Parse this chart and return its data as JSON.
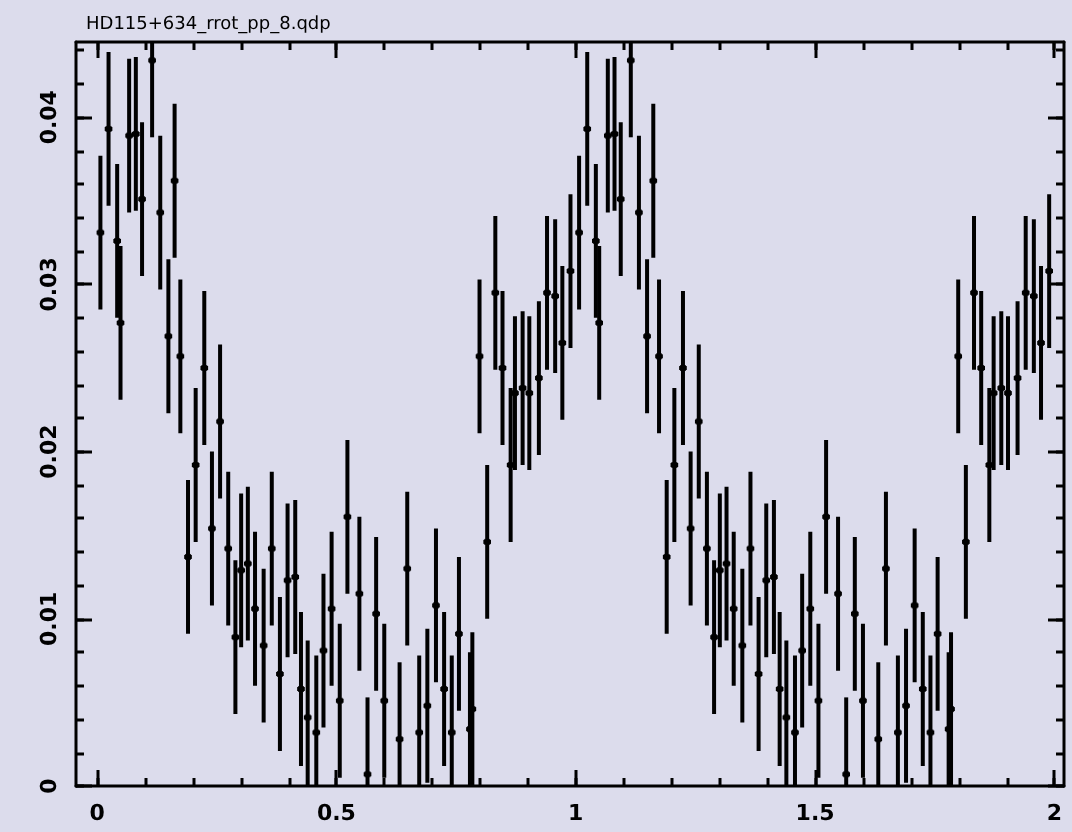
{
  "chart_data": {
    "type": "scatter",
    "title": "HD115+634_rrot_pp_8.qdp",
    "x": [
      0.007,
      0.024,
      0.042,
      0.049,
      0.067,
      0.081,
      0.094,
      0.115,
      0.132,
      0.149,
      0.162,
      0.174,
      0.19,
      0.206,
      0.224,
      0.24,
      0.257,
      0.274,
      0.289,
      0.301,
      0.315,
      0.33,
      0.348,
      0.365,
      0.382,
      0.398,
      0.414,
      0.426,
      0.44,
      0.458,
      0.473,
      0.49,
      0.507,
      0.523,
      0.548,
      0.565,
      0.583,
      0.6,
      0.632,
      0.648,
      0.673,
      0.69,
      0.708,
      0.725,
      0.741,
      0.756,
      0.779,
      0.784,
      0.799,
      0.815,
      0.832,
      0.847,
      0.864,
      0.873,
      0.889,
      0.903,
      0.923,
      0.94,
      0.957,
      0.972,
      0.989,
      1.007,
      1.024,
      1.042,
      1.049,
      1.067,
      1.081,
      1.094,
      1.115,
      1.132,
      1.149,
      1.162,
      1.174,
      1.19,
      1.206,
      1.224,
      1.24,
      1.257,
      1.274,
      1.289,
      1.301,
      1.315,
      1.33,
      1.348,
      1.365,
      1.382,
      1.398,
      1.414,
      1.426,
      1.44,
      1.458,
      1.473,
      1.49,
      1.507,
      1.523,
      1.548,
      1.565,
      1.583,
      1.6,
      1.632,
      1.648,
      1.673,
      1.69,
      1.708,
      1.725,
      1.741,
      1.756,
      1.779,
      1.784,
      1.799,
      1.815,
      1.832,
      1.847,
      1.864,
      1.873,
      1.889,
      1.903,
      1.923,
      1.94,
      1.957,
      1.972,
      1.989
    ],
    "values": [
      0.0331,
      0.0393,
      0.0326,
      0.0277,
      0.0389,
      0.039,
      0.0351,
      0.0434,
      0.0343,
      0.0269,
      0.0362,
      0.0257,
      0.0137,
      0.0192,
      0.025,
      0.0154,
      0.0218,
      0.0142,
      0.0089,
      0.0129,
      0.0133,
      0.0106,
      0.0084,
      0.0142,
      0.0067,
      0.0123,
      0.0125,
      0.0058,
      0.0041,
      0.0032,
      0.0081,
      0.0106,
      0.0051,
      0.0161,
      0.0115,
      0.0007,
      0.0103,
      0.0051,
      0.0028,
      0.013,
      0.0032,
      0.0048,
      0.0108,
      0.0058,
      0.0032,
      0.0091,
      0.0034,
      0.0046,
      0.0257,
      0.0146,
      0.0295,
      0.025,
      0.0192,
      0.0235,
      0.0238,
      0.0235,
      0.0244,
      0.0295,
      0.0293,
      0.0265,
      0.0308,
      0.0331,
      0.0393,
      0.0326,
      0.0277,
      0.0389,
      0.039,
      0.0351,
      0.0434,
      0.0343,
      0.0269,
      0.0362,
      0.0257,
      0.0137,
      0.0192,
      0.025,
      0.0154,
      0.0218,
      0.0142,
      0.0089,
      0.0129,
      0.0133,
      0.0106,
      0.0084,
      0.0142,
      0.0067,
      0.0123,
      0.0125,
      0.0058,
      0.0041,
      0.0032,
      0.0081,
      0.0106,
      0.0051,
      0.0161,
      0.0115,
      0.0007,
      0.0103,
      0.0051,
      0.0028,
      0.013,
      0.0032,
      0.0048,
      0.0108,
      0.0058,
      0.0032,
      0.0091,
      0.0034,
      0.0046,
      0.0257,
      0.0146,
      0.0295,
      0.025,
      0.0192,
      0.0235,
      0.0238,
      0.0235,
      0.0244,
      0.0295,
      0.0293,
      0.0265,
      0.0308
    ],
    "errors": [
      0.0046,
      0.0046,
      0.0046,
      0.0046,
      0.0046,
      0.0046,
      0.0046,
      [
        0.0388,
        0.0445
      ],
      0.0046,
      0.0046,
      0.0046,
      0.0046,
      0.0046,
      0.0046,
      0.0046,
      0.0046,
      0.0046,
      0.0046,
      0.0046,
      0.0046,
      0.0046,
      0.0046,
      0.0046,
      0.0046,
      0.0046,
      0.0046,
      0.0046,
      0.0046,
      [
        0,
        0.0087
      ],
      [
        0,
        0.0078
      ],
      0.0046,
      0.0046,
      0.0046,
      0.0046,
      0.0046,
      [
        0,
        0.0053
      ],
      0.0046,
      0.0046,
      [
        0,
        0.0074
      ],
      0.0046,
      [
        0,
        0.0078
      ],
      0.0046,
      0.0046,
      0.0046,
      [
        0,
        0.0078
      ],
      0.0046,
      [
        0,
        0.008
      ],
      0.0046,
      0.0046,
      0.0046,
      0.0046,
      0.0046,
      0.0046,
      0.0046,
      0.0046,
      0.0046,
      0.0046,
      0.0046,
      0.0046,
      0.0046,
      0.0046,
      0.0046,
      0.0046,
      0.0046,
      0.0046,
      0.0046,
      0.0046,
      0.0046,
      [
        0.0388,
        0.0445
      ],
      0.0046,
      0.0046,
      0.0046,
      0.0046,
      0.0046,
      0.0046,
      0.0046,
      0.0046,
      0.0046,
      0.0046,
      0.0046,
      0.0046,
      0.0046,
      0.0046,
      0.0046,
      0.0046,
      0.0046,
      0.0046,
      0.0046,
      0.0046,
      [
        0,
        0.0087
      ],
      [
        0,
        0.0078
      ],
      0.0046,
      0.0046,
      0.0046,
      0.0046,
      0.0046,
      [
        0,
        0.0053
      ],
      0.0046,
      0.0046,
      [
        0,
        0.0074
      ],
      0.0046,
      [
        0,
        0.0078
      ],
      0.0046,
      0.0046,
      0.0046,
      [
        0,
        0.0078
      ],
      0.0046,
      [
        0,
        0.008
      ],
      0.0046,
      0.0046,
      0.0046,
      0.0046,
      0.0046,
      0.0046,
      0.0046,
      0.0046,
      0.0046,
      0.0046,
      0.0046,
      0.0046,
      0.0046,
      0.0046
    ],
    "xerrors": [
      0.008,
      0.008,
      0.008,
      0.008,
      0.008,
      0.008,
      0.008,
      0.008,
      0.008,
      0.008,
      0.008,
      0.008,
      0.008,
      0.008,
      0.008,
      0.008,
      0.008,
      0.008,
      0.008,
      0.008,
      0.008,
      0.008,
      0.008,
      0.008,
      0.008,
      0.008,
      0.008,
      0.008,
      0.008,
      0.008,
      0.008,
      0.008,
      0.008,
      0.008,
      0.008,
      0.008,
      0.008,
      0.008,
      0.008,
      0.008,
      0.008,
      0.008,
      0.008,
      0.008,
      0.008,
      0.008,
      0.008,
      0.008,
      0.008,
      0.008,
      0.008,
      0.008,
      0.008,
      0.008,
      0.008,
      0.008,
      0.008,
      0.008,
      0.008,
      0.008,
      0.008,
      0.008,
      0.008,
      0.008,
      0.008,
      0.008,
      0.008,
      0.008,
      0.008,
      0.008,
      0.008,
      0.008,
      0.008,
      0.008,
      0.008,
      0.008,
      0.008,
      0.008,
      0.008,
      0.008,
      0.008,
      0.008,
      0.008,
      0.008,
      0.008,
      0.008,
      0.008,
      0.008,
      0.008,
      0.008,
      0.008,
      0.008,
      0.008,
      0.008,
      0.008,
      0.008,
      0.008,
      0.008,
      0.008,
      0.008,
      0.008,
      0.008,
      0.008,
      0.008,
      0.008,
      0.008,
      0.008,
      0.008,
      0.008,
      0.008,
      0.008,
      0.008,
      0.008,
      0.008,
      0.008,
      0.008,
      0.008,
      0.008,
      0.008,
      0.008,
      0.008,
      0.008
    ],
    "color": "#000000",
    "marker": "square",
    "xlim": [
      -0.044,
      2.02
    ],
    "xticks": [
      0,
      {
        "value": 0.1,
        "label": null
      },
      {
        "value": 0.2,
        "label": null
      },
      {
        "value": 0.3,
        "label": null
      },
      {
        "value": 0.4,
        "label": null
      },
      0.5,
      {
        "value": 0.6,
        "label": null
      },
      {
        "value": 0.7,
        "label": null
      },
      {
        "value": 0.8,
        "label": null
      },
      {
        "value": 0.9,
        "label": null
      },
      1,
      {
        "value": 1.1,
        "label": null
      },
      {
        "value": 1.2,
        "label": null
      },
      {
        "value": 1.3,
        "label": null
      },
      {
        "value": 1.4,
        "label": null
      },
      1.5,
      {
        "value": 1.6,
        "label": null
      },
      {
        "value": 1.7,
        "label": null
      },
      {
        "value": 1.8,
        "label": null
      },
      {
        "value": 1.9,
        "label": null
      },
      2
    ],
    "ylim": [
      0,
      0.0445
    ],
    "yticks": [
      0,
      {
        "value": 0.002,
        "label": null
      },
      {
        "value": 0.004,
        "label": null
      },
      {
        "value": 0.006,
        "label": null
      },
      {
        "value": 0.008,
        "label": null
      },
      0.01,
      {
        "value": 0.012,
        "label": null
      },
      {
        "value": 0.014,
        "label": null
      },
      {
        "value": 0.016,
        "label": null
      },
      {
        "value": 0.018,
        "label": null
      },
      0.02,
      {
        "value": 0.022,
        "label": null
      },
      {
        "value": 0.024,
        "label": null
      },
      {
        "value": 0.026,
        "label": null
      },
      {
        "value": 0.028,
        "label": null
      },
      0.03,
      {
        "value": 0.032,
        "label": null
      },
      {
        "value": 0.034,
        "label": null
      },
      {
        "value": 0.036,
        "label": null
      },
      {
        "value": 0.038,
        "label": null
      },
      0.04,
      {
        "value": 0.042,
        "label": null
      },
      {
        "value": 0.044,
        "label": null
      }
    ]
  }
}
